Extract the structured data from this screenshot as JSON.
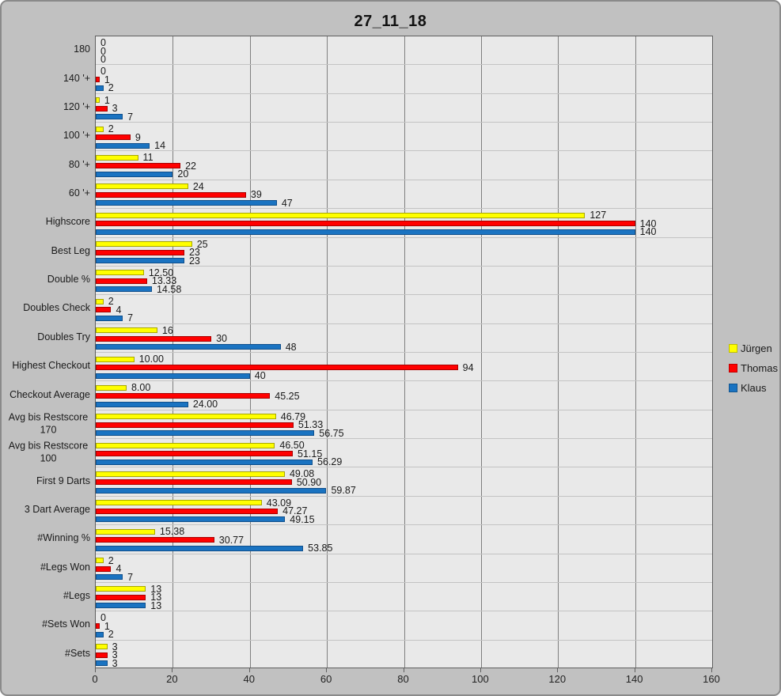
{
  "window": {
    "background_color": "#c1c1c1",
    "plot_background_color": "#e9e9e9"
  },
  "chart_data": {
    "type": "bar",
    "orientation": "horizontal",
    "title": "27_11_18",
    "xlabel": "",
    "ylabel": "",
    "xlim": [
      0,
      160
    ],
    "xtick_step": 20,
    "xticks": [
      "0",
      "20",
      "40",
      "60",
      "80",
      "100",
      "120",
      "140",
      "160"
    ],
    "grid": "vertical-major",
    "legend_position": "right",
    "categories": [
      "180",
      "140 '+",
      "120 '+",
      "100 '+",
      "80 '+",
      "60 '+",
      "Highscore",
      "Best Leg",
      "Double %",
      "Doubles Check",
      "Doubles Try",
      "Highest Checkout",
      "Checkout Average",
      "Avg bis Restscore\n170",
      "Avg bis Restscore\n100",
      "First 9 Darts",
      "3 Dart Average",
      "#Winning %",
      "#Legs Won",
      "#Legs",
      "#Sets Won",
      "#Sets"
    ],
    "series": [
      {
        "name": "Jürgen",
        "color": "#ffff00",
        "css_class": "yellow",
        "values": [
          0,
          0,
          1,
          2,
          11,
          24,
          127,
          25,
          12.5,
          2,
          16,
          10,
          8,
          46.79,
          46.5,
          49.08,
          43.09,
          15.38,
          2,
          13,
          0,
          3
        ],
        "labels": [
          "0",
          "0",
          "1",
          "2",
          "11",
          "24",
          "127",
          "25",
          "12.50",
          "2",
          "16",
          "10.00",
          "8.00",
          "46.79",
          "46.50",
          "49.08",
          "43.09",
          "15.38",
          "2",
          "13",
          "0",
          "3"
        ]
      },
      {
        "name": "Thomas",
        "color": "#ff0000",
        "css_class": "red",
        "values": [
          0,
          1,
          3,
          9,
          22,
          39,
          140,
          23,
          13.33,
          4,
          30,
          94,
          45.25,
          51.33,
          51.15,
          50.9,
          47.27,
          30.77,
          4,
          13,
          1,
          3
        ],
        "labels": [
          "0",
          "1",
          "3",
          "9",
          "22",
          "39",
          "140",
          "23",
          "13.33",
          "4",
          "30",
          "94",
          "45.25",
          "51.33",
          "51.15",
          "50.90",
          "47.27",
          "30.77",
          "4",
          "13",
          "1",
          "3"
        ]
      },
      {
        "name": "Klaus",
        "color": "#1a73c1",
        "css_class": "blue",
        "values": [
          0,
          2,
          7,
          14,
          20,
          47,
          140,
          23,
          14.58,
          7,
          48,
          40,
          24,
          56.75,
          56.29,
          59.87,
          49.15,
          53.85,
          7,
          13,
          2,
          3
        ],
        "labels": [
          "0",
          "2",
          "7",
          "14",
          "20",
          "47",
          "140",
          "23",
          "14.58",
          "7",
          "48",
          "40",
          "24.00",
          "56.75",
          "56.29",
          "59.87",
          "49.15",
          "53.85",
          "7",
          "13",
          "2",
          "3"
        ]
      }
    ]
  }
}
